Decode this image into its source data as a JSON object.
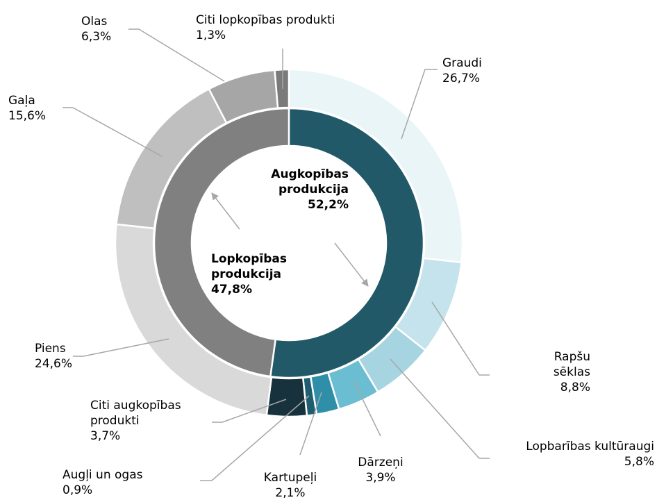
{
  "chart_data": {
    "type": "nested-donut",
    "inner": {
      "categories": [
        "Augkopības produkcija",
        "Lopkopības produkcija"
      ],
      "values": [
        52.2,
        47.8
      ],
      "value_labels": [
        "52,2%",
        "47,8%"
      ],
      "colors": [
        "#215968",
        "#808080"
      ]
    },
    "outer": {
      "categories": [
        "Graudi",
        "Rapšu sēklas",
        "Lopbarības kultūraugi",
        "Dārzeņi",
        "Kartupeļi",
        "Augļi un ogas",
        "Citi augkopības produkti",
        "Piens",
        "Gaļa",
        "Olas",
        "Citi lopkopības produkti"
      ],
      "values": [
        26.7,
        8.8,
        5.8,
        3.9,
        2.1,
        0.9,
        3.7,
        24.6,
        15.6,
        6.3,
        1.3
      ],
      "value_labels": [
        "26,7%",
        "8,8%",
        "5,8%",
        "3,9%",
        "2,1%",
        "0,9%",
        "3,7%",
        "24,6%",
        "15,6%",
        "6,3%",
        "1,3%"
      ],
      "colors": [
        "#eaf5f8",
        "#c4e3ec",
        "#a6d4e1",
        "#6bbdd2",
        "#2f8ea8",
        "#1e5e70",
        "#17323d",
        "#d9d9d9",
        "#bfbfbf",
        "#a6a6a6",
        "#7a7a7a"
      ]
    }
  }
}
